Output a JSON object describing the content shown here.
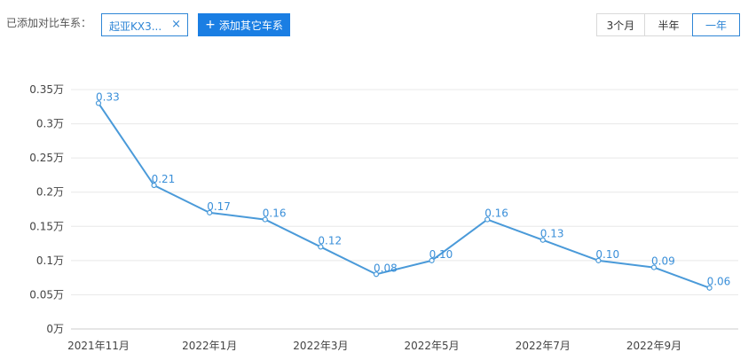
{
  "toolbar": {
    "compare_label": "已添加对比车系：",
    "series_chip": "起亚KX3...",
    "close_glyph": "×",
    "add_button": "添加其它车系",
    "add_icon": "plus-icon",
    "range_options": [
      "3个月",
      "半年",
      "一年"
    ],
    "range_selected": "一年"
  },
  "colors": {
    "accent": "#2f86d6",
    "button": "#1a7ee3",
    "line": "#4a9ad9",
    "grid": "#e8e8e8"
  },
  "chart_data": {
    "type": "line",
    "title": "",
    "xlabel": "",
    "ylabel": "",
    "x": [
      "2021年11月",
      "2021年12月",
      "2022年1月",
      "2022年2月",
      "2022年3月",
      "2022年4月",
      "2022年5月",
      "2022年6月",
      "2022年7月",
      "2022年8月",
      "2022年9月",
      "2022年10月"
    ],
    "x_tick_labels": [
      "2021年11月",
      "2022年1月",
      "2022年3月",
      "2022年5月",
      "2022年7月",
      "2022年9月"
    ],
    "series": [
      {
        "values": [
          0.33,
          0.21,
          0.17,
          0.16,
          0.12,
          0.08,
          0.1,
          0.16,
          0.13,
          0.1,
          0.09,
          0.06
        ],
        "labels": [
          "0.33",
          "0.21",
          "0.17",
          "0.16",
          "0.12",
          "0.08",
          "0.10",
          "0.16",
          "0.13",
          "0.10",
          "0.09",
          "0.06"
        ]
      }
    ],
    "ylim": [
      0,
      0.35
    ],
    "y_ticks": [
      0,
      0.05,
      0.1,
      0.15,
      0.2,
      0.25,
      0.3,
      0.35
    ],
    "y_tick_labels": [
      "0万",
      "0.05万",
      "0.1万",
      "0.15万",
      "0.2万",
      "0.25万",
      "0.3万",
      "0.35万"
    ],
    "grid": true,
    "legend": "none"
  }
}
